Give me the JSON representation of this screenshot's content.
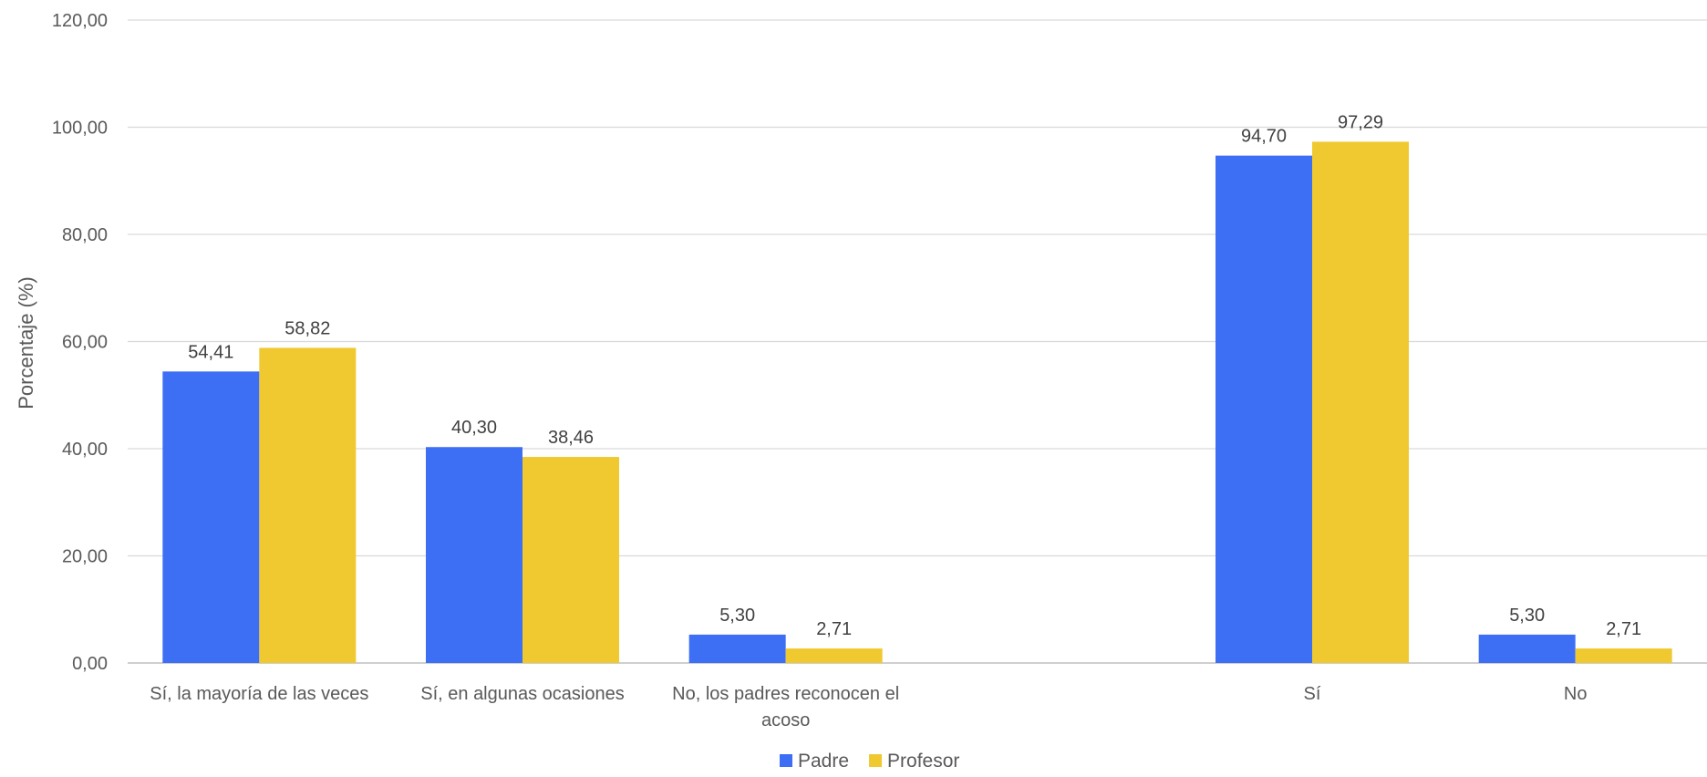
{
  "chart_data": {
    "type": "bar",
    "categories": [
      "Sí, la mayoría de las veces",
      "Sí, en algunas ocasiones",
      "No, los padres reconocen el acoso",
      "",
      "Sí",
      "No"
    ],
    "category_lines": [
      [
        "Sí, la mayoría de las veces"
      ],
      [
        "Sí, en algunas ocasiones"
      ],
      [
        "No, los padres reconocen el",
        "acoso"
      ],
      [],
      [
        "Sí"
      ],
      [
        "No"
      ]
    ],
    "series": [
      {
        "name": "Padre",
        "color": "#3d6ff5",
        "values": [
          54.41,
          40.3,
          5.3,
          null,
          94.7,
          5.3
        ],
        "labels": [
          "54,41",
          "40,30",
          "5,30",
          "",
          "94,70",
          "5,30"
        ]
      },
      {
        "name": "Profesor",
        "color": "#f0c930",
        "values": [
          58.82,
          38.46,
          2.71,
          null,
          97.29,
          2.71
        ],
        "labels": [
          "58,82",
          "38,46",
          "2,71",
          "",
          "97,29",
          "2,71"
        ]
      }
    ],
    "title": "",
    "xlabel": "",
    "ylabel": "Porcentaje (%)",
    "ylim": [
      0,
      120
    ],
    "yticks": [
      0,
      20,
      40,
      60,
      80,
      100,
      120
    ],
    "ytick_labels": [
      "0,00",
      "20,00",
      "40,00",
      "60,00",
      "80,00",
      "100,00",
      "120,00"
    ],
    "grid": true,
    "legend_position": "bottom"
  }
}
